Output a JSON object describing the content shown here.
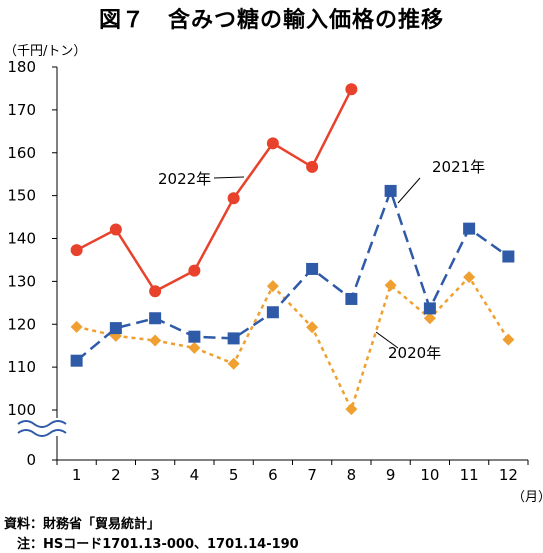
{
  "chart_data": {
    "type": "line",
    "title": "図７　含みつ糖の輸入価格の推移",
    "ylabel": "（千円/トン）",
    "xlabel": "（月）",
    "categories": [
      "1",
      "2",
      "3",
      "4",
      "5",
      "6",
      "7",
      "8",
      "9",
      "10",
      "11",
      "12"
    ],
    "ylim": [
      100,
      180
    ],
    "y_ticks": [
      "180",
      "170",
      "160",
      "150",
      "140",
      "130",
      "120",
      "110",
      "100",
      "0"
    ],
    "axis_break": true,
    "grid": false,
    "series": [
      {
        "name": "2022年",
        "color": "#e8412c",
        "line": "solid",
        "marker": "circle",
        "values": [
          137.3,
          142.1,
          127.7,
          132.5,
          149.4,
          162.2,
          156.7,
          174.8,
          null,
          null,
          null,
          null
        ]
      },
      {
        "name": "2021年",
        "color": "#2f5aa8",
        "line": "dashed",
        "marker": "square",
        "values": [
          111.5,
          119.1,
          121.4,
          117.1,
          116.7,
          122.8,
          132.9,
          125.9,
          151.1,
          123.7,
          142.3,
          135.8
        ]
      },
      {
        "name": "2020年",
        "color": "#f0a030",
        "line": "dotted",
        "marker": "diamond",
        "values": [
          119.4,
          117.3,
          116.2,
          114.5,
          110.8,
          128.9,
          119.3,
          100.2,
          129.1,
          121.4,
          131.0,
          116.4
        ]
      }
    ]
  },
  "source": "資料：財務省「貿易統計」",
  "note": "　注：HSコード1701.13-000、1701.14-190"
}
